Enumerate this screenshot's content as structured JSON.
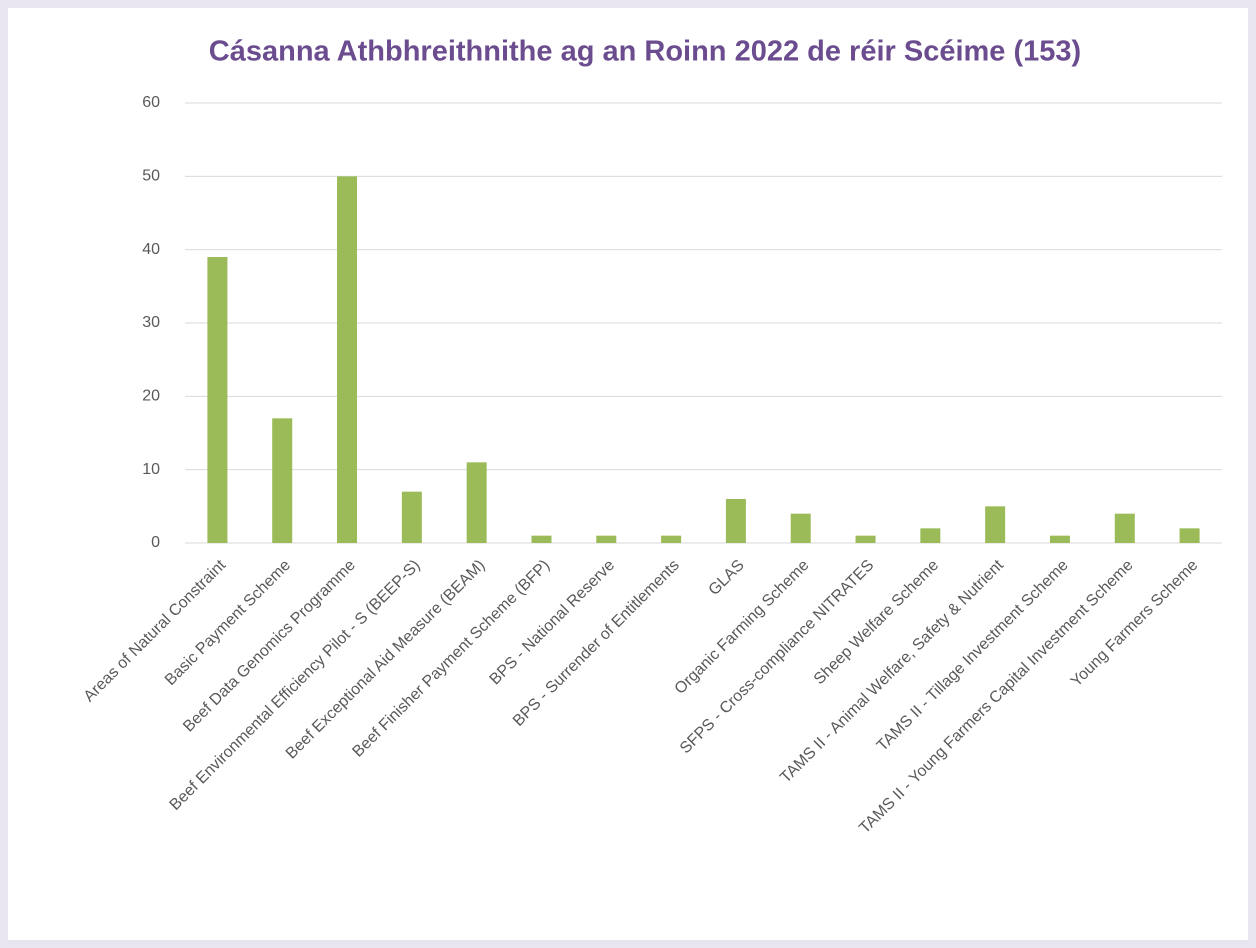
{
  "chart_data": {
    "type": "bar",
    "title": "Cásanna Athbhreithnithe ag an Roinn 2022 de réir Scéime (153)",
    "categories": [
      "Areas of Natural Constraint",
      "Basic Payment Scheme",
      "Beef Data Genomics Programme",
      "Beef Environmental Efficiency Pilot - S (BEEP-S)",
      "Beef Exceptional Aid Measure (BEAM)",
      "Beef Finisher Payment Scheme (BFP)",
      "BPS - National Reserve",
      "BPS - Surrender of Entitlements",
      "GLAS",
      "Organic Farming Scheme",
      "SFPS - Cross-compliance NITRATES",
      "Sheep Welfare Scheme",
      "TAMS II - Animal Welfare, Safety & Nutrient",
      "TAMS II - Tillage Investment Scheme",
      "TAMS II - Young Farmers Capital Investment Scheme",
      "Young Farmers Scheme"
    ],
    "values": [
      39,
      17,
      50,
      7,
      11,
      1,
      1,
      1,
      6,
      4,
      1,
      2,
      5,
      1,
      4,
      2
    ],
    "color": "#9bbb59",
    "ylim": [
      0,
      60
    ],
    "yticks": [
      0,
      10,
      20,
      30,
      40,
      50,
      60
    ],
    "grid": true
  }
}
